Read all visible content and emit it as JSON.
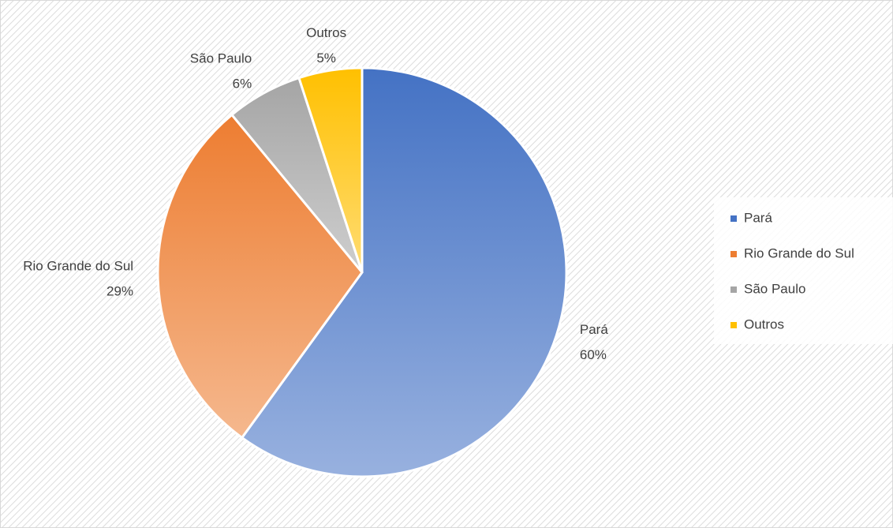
{
  "chart_data": {
    "type": "pie",
    "categories": [
      "Pará",
      "Rio Grande do Sul",
      "São Paulo",
      "Outros"
    ],
    "values": [
      60,
      29,
      6,
      5
    ],
    "value_labels": [
      "60%",
      "29%",
      "6%",
      "5%"
    ],
    "colors": [
      "#4472c4",
      "#ed7d31",
      "#a5a5a5",
      "#ffc000"
    ],
    "legend": "right"
  }
}
